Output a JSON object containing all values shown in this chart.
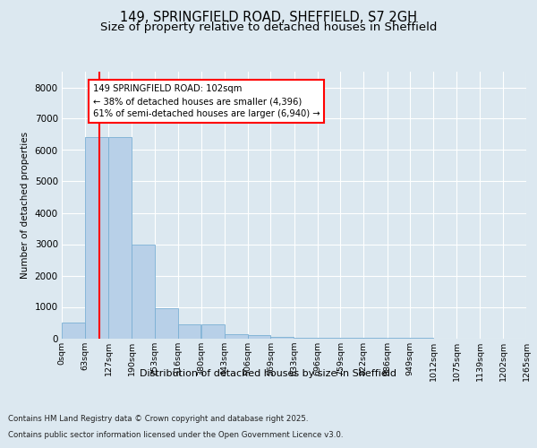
{
  "title1": "149, SPRINGFIELD ROAD, SHEFFIELD, S7 2GH",
  "title2": "Size of property relative to detached houses in Sheffield",
  "xlabel": "Distribution of detached houses by size in Sheffield",
  "ylabel": "Number of detached properties",
  "footer1": "Contains HM Land Registry data © Crown copyright and database right 2025.",
  "footer2": "Contains public sector information licensed under the Open Government Licence v3.0.",
  "bin_edges": [
    0,
    63,
    127,
    190,
    253,
    316,
    380,
    443,
    506,
    569,
    633,
    696,
    759,
    822,
    886,
    949,
    1012,
    1075,
    1139,
    1202,
    1265
  ],
  "bin_labels": [
    "0sqm",
    "63sqm",
    "127sqm",
    "190sqm",
    "253sqm",
    "316sqm",
    "380sqm",
    "443sqm",
    "506sqm",
    "569sqm",
    "633sqm",
    "696sqm",
    "759sqm",
    "822sqm",
    "886sqm",
    "949sqm",
    "1012sqm",
    "1075sqm",
    "1139sqm",
    "1202sqm",
    "1265sqm"
  ],
  "bar_heights": [
    500,
    6400,
    6400,
    3000,
    950,
    430,
    430,
    120,
    100,
    30,
    10,
    5,
    3,
    2,
    1,
    1,
    0,
    0,
    0,
    0
  ],
  "bar_color": "#b8d0e8",
  "bar_edge_color": "#7aafd4",
  "vline_x": 102,
  "vline_color": "red",
  "annotation_line1": "149 SPRINGFIELD ROAD: 102sqm",
  "annotation_line2": "← 38% of detached houses are smaller (4,396)",
  "annotation_line3": "61% of semi-detached houses are larger (6,940) →",
  "annotation_box_color": "white",
  "annotation_box_edge": "red",
  "ylim": [
    0,
    8500
  ],
  "yticks": [
    0,
    1000,
    2000,
    3000,
    4000,
    5000,
    6000,
    7000,
    8000
  ],
  "background_color": "#dce8f0",
  "plot_bg_color": "#dce8f0",
  "grid_color": "white",
  "title_fontsize": 10.5,
  "subtitle_fontsize": 9.5
}
